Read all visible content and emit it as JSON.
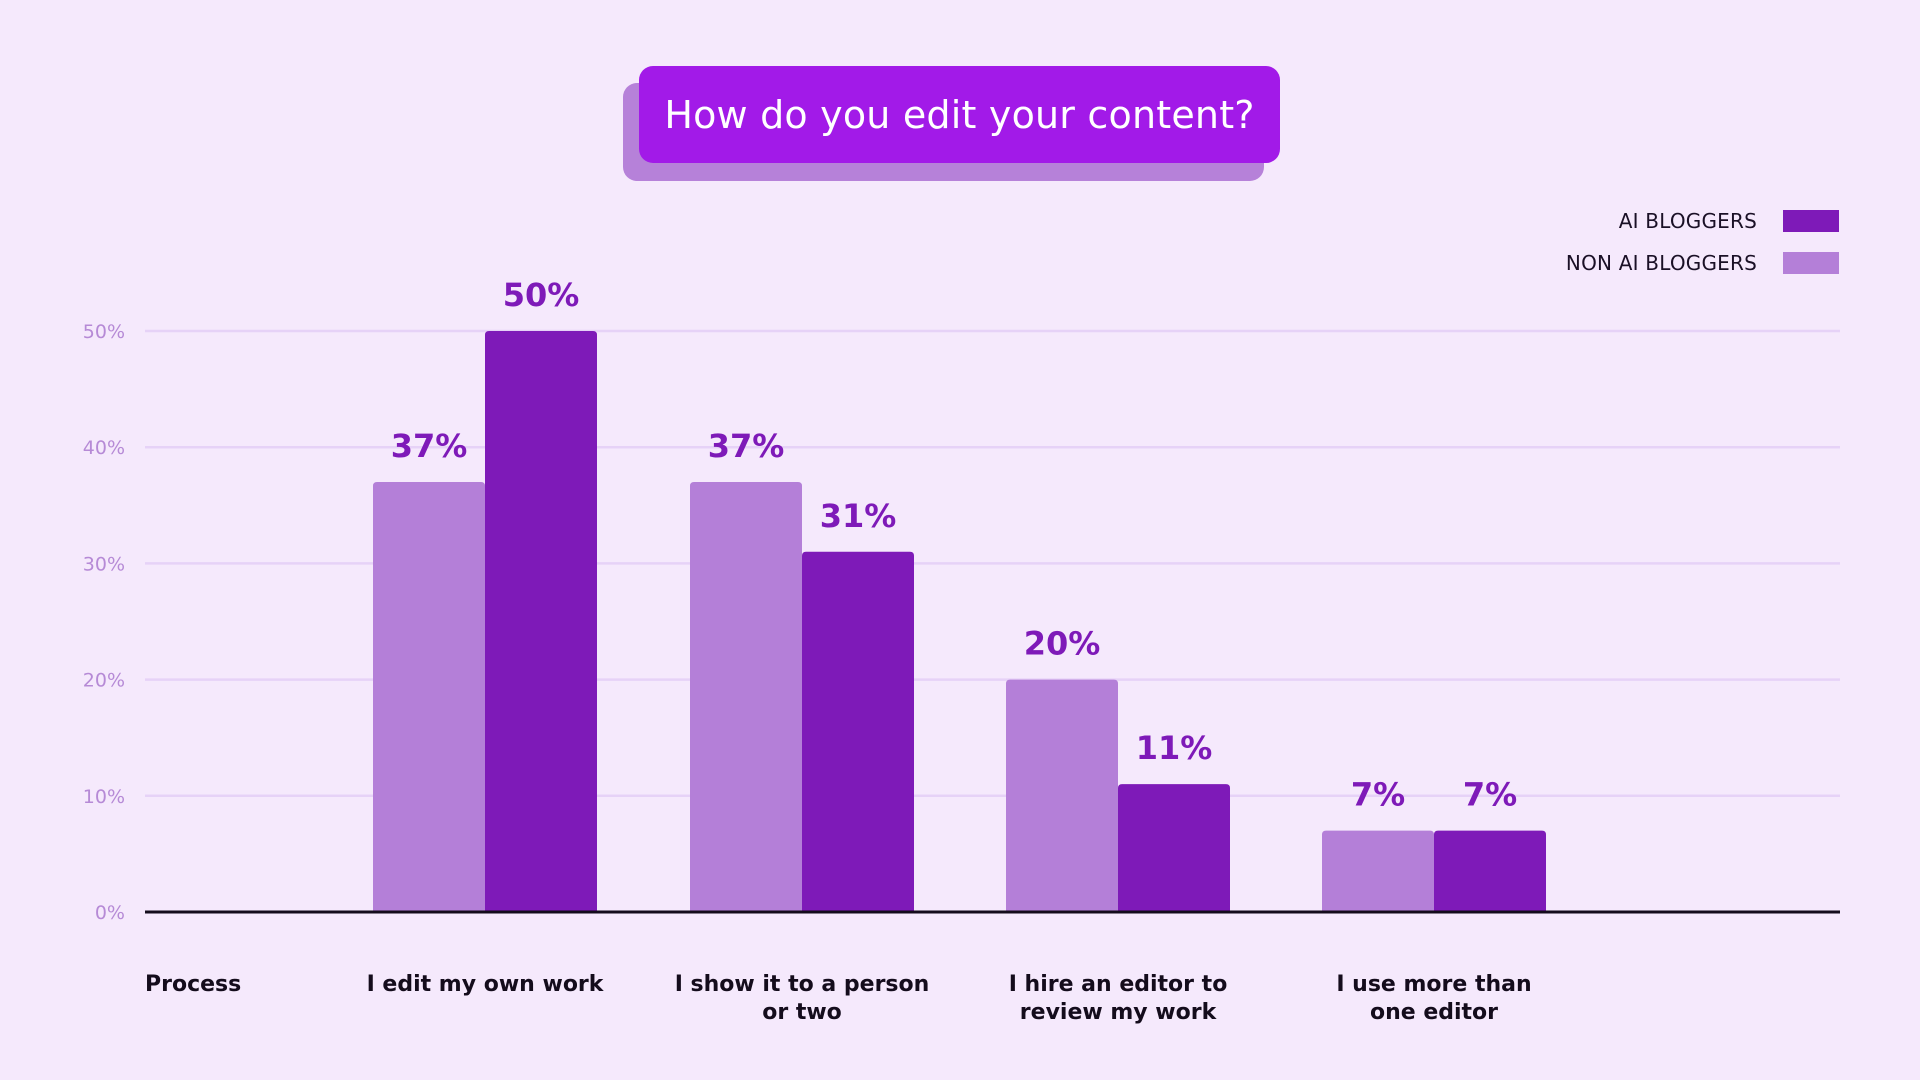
{
  "chart_data": {
    "type": "bar",
    "title": "How do you edit your content?",
    "xlabel": "Process",
    "ylabel": "",
    "ylim": [
      0,
      50
    ],
    "yticks": [
      "0%",
      "10%",
      "20%",
      "30%",
      "40%",
      "50%"
    ],
    "grid": true,
    "legend_position": "top-right",
    "categories": [
      [
        "I edit my own work"
      ],
      [
        "I show it to a person",
        "or two"
      ],
      [
        "I hire an editor to",
        "review my work"
      ],
      [
        "I use more than",
        "one editor"
      ]
    ],
    "series": [
      {
        "name": "NON AI BLOGGERS",
        "color": "#b47fd8",
        "values": [
          37,
          37,
          20,
          7
        ],
        "labels": [
          "37%",
          "37%",
          "20%",
          "7%"
        ]
      },
      {
        "name": "AI BLOGGERS",
        "color": "#7e1ab8",
        "values": [
          50,
          31,
          11,
          7
        ],
        "labels": [
          "50%",
          "31%",
          "11%",
          "7%"
        ]
      }
    ]
  },
  "legend": [
    {
      "label": "AI BLOGGERS",
      "color": "#7e1ab8"
    },
    {
      "label": "NON AI BLOGGERS",
      "color": "#b47fd8"
    }
  ]
}
